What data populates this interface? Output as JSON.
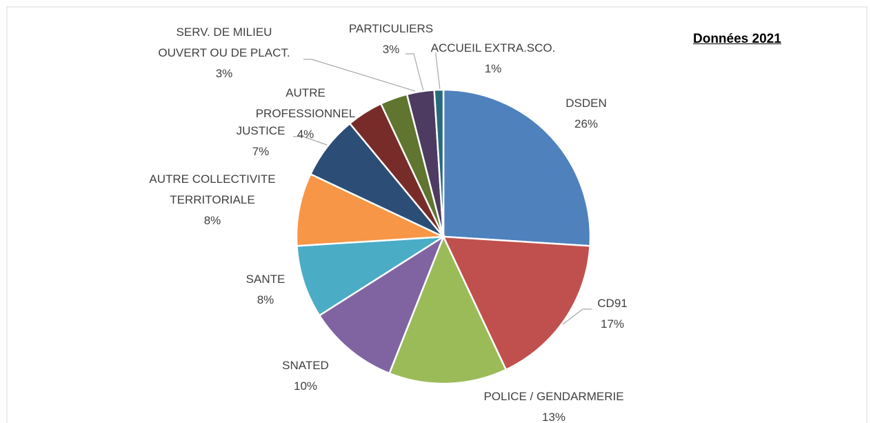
{
  "chart_data": {
    "type": "pie",
    "title": "Données 2021",
    "categories": [
      "DSDEN",
      "CD91",
      "POLICE / GENDARMERIE",
      "SNATED",
      "SANTE",
      "AUTRE COLLECTIVITE TERRITORIALE",
      "JUSTICE",
      "AUTRE PROFESSIONNEL",
      "SERV. DE MILIEU OUVERT OU DE PLACT.",
      "PARTICULIERS",
      "ACCUEIL EXTRA.SCO."
    ],
    "values": [
      26,
      17,
      13,
      10,
      8,
      8,
      7,
      4,
      3,
      3,
      1
    ],
    "value_labels": [
      "26%",
      "17%",
      "13%",
      "10%",
      "8%",
      "8%",
      "7%",
      "4%",
      "3%",
      "3%",
      "1%"
    ],
    "colors": [
      "#4f81bd",
      "#c0504d",
      "#9bbb59",
      "#8064a2",
      "#4bacc6",
      "#f79646",
      "#2c4d75",
      "#772c2a",
      "#5f7530",
      "#4d3b62",
      "#276a7c"
    ]
  }
}
